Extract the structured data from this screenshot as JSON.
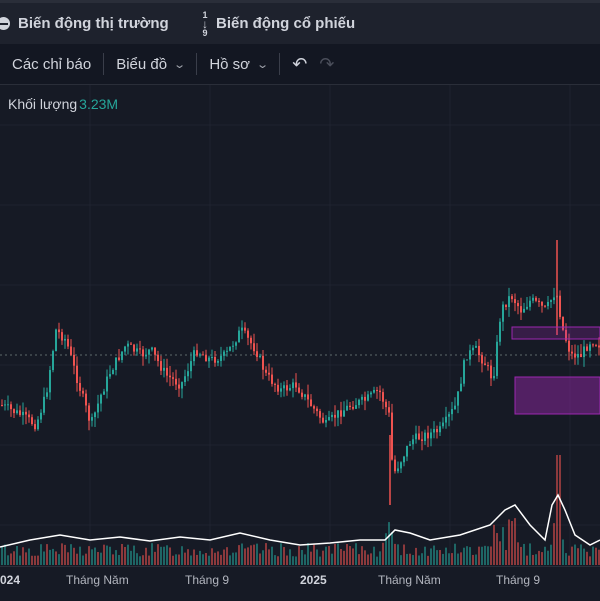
{
  "header": {
    "tabs": [
      {
        "label": "Biến động thị trường",
        "icon": "globe-icon"
      },
      {
        "label": "Biến động cổ phiếu",
        "icon": "sort-numeric-icon",
        "icon_top": "1",
        "icon_bottom": "9"
      }
    ]
  },
  "toolbar": {
    "indicators_label": "Các chỉ báo",
    "chart_label": "Biểu đồ",
    "profile_label": "Hồ sơ",
    "undo_icon": "undo-icon",
    "redo_icon": "redo-icon"
  },
  "legend": {
    "label": "Khối lượng",
    "value": "3.23M"
  },
  "xaxis": {
    "ticks": [
      "024",
      "Tháng Năm",
      "Tháng 9",
      "2025",
      "Tháng Năm",
      "Tháng 9"
    ]
  },
  "colors": {
    "up": "#26a69a",
    "down": "#ef5350",
    "background": "#161a25",
    "zone": "#9c27b0",
    "volume_line": "#ffffff"
  }
}
